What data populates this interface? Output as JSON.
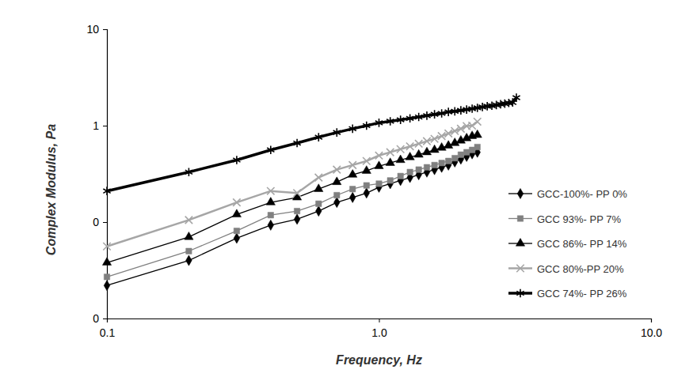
{
  "chart_data": {
    "type": "line",
    "x_label": "Frequency, Hz",
    "y_label": "Complex Modulus, Pa",
    "log": true,
    "grid": false,
    "legend": "right",
    "xlim": [
      0.1,
      10
    ],
    "xticks": [
      0.1,
      {
        "value": 1,
        "label": "1.0"
      },
      {
        "value": 10,
        "label": "10.0"
      }
    ],
    "ylim": [
      0.01,
      10
    ],
    "yticks": [
      {
        "value": 0.01,
        "label": "0"
      },
      {
        "value": 0.1,
        "label": "0"
      },
      1,
      10
    ],
    "x": [
      0.1,
      0.2,
      0.3,
      0.4,
      0.5,
      0.6,
      0.7,
      0.8,
      0.9,
      1.0,
      1.1,
      1.2,
      1.3,
      1.4,
      1.5,
      1.6,
      1.7,
      1.8,
      1.9,
      2.0,
      2.1,
      2.2,
      2.3,
      2.4,
      2.5,
      2.6,
      2.7,
      2.8,
      2.9,
      3.0,
      3.1,
      3.2
    ],
    "series": [
      {
        "name": "GCC-100%- PP 0%",
        "color": "#000000",
        "marker": "diamond",
        "values": [
          0.022,
          0.04,
          0.068,
          0.093,
          0.107,
          0.13,
          0.16,
          0.18,
          0.2,
          0.23,
          0.25,
          0.27,
          0.29,
          0.31,
          0.33,
          0.35,
          0.37,
          0.39,
          0.42,
          0.45,
          0.48,
          0.51,
          0.53,
          null,
          null,
          null,
          null,
          null,
          null,
          null,
          null,
          null
        ]
      },
      {
        "name": "GCC 93%- PP 7%",
        "color": "#808080",
        "marker": "square",
        "values": [
          0.027,
          0.05,
          0.081,
          0.118,
          0.13,
          0.155,
          0.19,
          0.22,
          0.24,
          0.25,
          0.27,
          0.3,
          0.33,
          0.35,
          0.37,
          0.39,
          0.41,
          0.43,
          0.46,
          0.5,
          0.53,
          0.56,
          0.6,
          null,
          null,
          null,
          null,
          null,
          null,
          null,
          null,
          null
        ]
      },
      {
        "name": "GCC 86%- PP 14%",
        "color": "#000000",
        "marker": "triangle",
        "values": [
          0.038,
          0.07,
          0.12,
          0.16,
          0.18,
          0.22,
          0.26,
          0.31,
          0.34,
          0.38,
          0.41,
          0.44,
          0.47,
          0.5,
          0.53,
          0.56,
          0.59,
          0.62,
          0.66,
          0.7,
          0.74,
          0.78,
          0.8,
          null,
          null,
          null,
          null,
          null,
          null,
          null,
          null,
          null
        ]
      },
      {
        "name": "GCC 80%-PP 20%",
        "color": "#a6a6a6",
        "marker": "x",
        "values": [
          0.056,
          0.105,
          0.16,
          0.21,
          0.2,
          0.29,
          0.35,
          0.39,
          0.43,
          0.49,
          0.53,
          0.57,
          0.61,
          0.65,
          0.69,
          0.73,
          0.78,
          0.83,
          0.88,
          0.93,
          0.99,
          1.0,
          1.1,
          null,
          null,
          null,
          null,
          null,
          null,
          null,
          null,
          null
        ]
      },
      {
        "name": "GCC 74%- PP 26%",
        "color": "#000000",
        "marker": "star",
        "values": [
          0.21,
          0.33,
          0.44,
          0.56,
          0.66,
          0.76,
          0.85,
          0.93,
          1.0,
          1.07,
          1.11,
          1.15,
          1.19,
          1.23,
          1.27,
          1.31,
          1.34,
          1.39,
          1.41,
          1.44,
          1.47,
          1.5,
          1.53,
          1.56,
          1.59,
          1.61,
          1.64,
          1.67,
          1.69,
          1.72,
          1.74,
          1.95
        ]
      }
    ]
  }
}
